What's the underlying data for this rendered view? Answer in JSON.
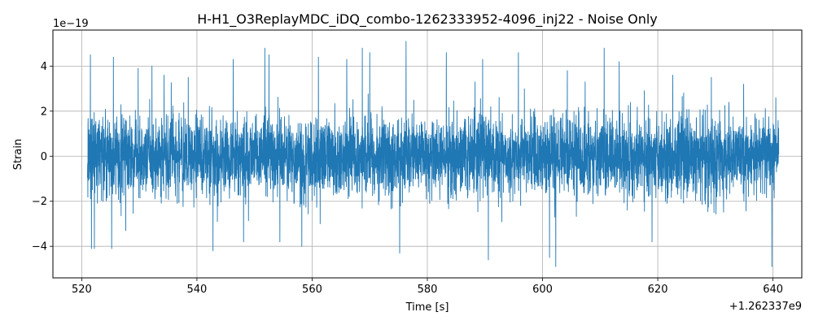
{
  "chart_data": {
    "type": "line",
    "title": "H-H1_O3ReplayMDC_iDQ_combo-1262333952-4096_inj22 - Noise Only",
    "xlabel": "Time [s]",
    "ylabel": "Strain",
    "x_offset_label": "+1.262337e9",
    "y_scale_label": "1e−19",
    "xlim": [
      515,
      645
    ],
    "ylim": [
      -5.4,
      5.6
    ],
    "grid": true,
    "x_ticks": [
      520,
      540,
      560,
      580,
      600,
      620,
      640
    ],
    "x_tick_labels": [
      "520",
      "540",
      "560",
      "580",
      "600",
      "620",
      "640"
    ],
    "y_ticks": [
      -4,
      -2,
      0,
      2,
      4
    ],
    "y_tick_labels": [
      "−4",
      "−2",
      "0",
      "2",
      "4"
    ],
    "series": [
      {
        "color": "#1f77b4",
        "x_range": [
          521,
          641
        ],
        "typical_amplitude": 1.6,
        "peaks": [
          {
            "x": 521.5,
            "y": 4.5
          },
          {
            "x": 521.7,
            "y": -4.1
          },
          {
            "x": 522.2,
            "y": -4.1
          },
          {
            "x": 525.5,
            "y": 4.4
          },
          {
            "x": 525.2,
            "y": -4.1
          },
          {
            "x": 529.8,
            "y": 3.9
          },
          {
            "x": 532.2,
            "y": 4.0
          },
          {
            "x": 534.3,
            "y": 3.6
          },
          {
            "x": 538.5,
            "y": 3.5
          },
          {
            "x": 542.8,
            "y": -4.2
          },
          {
            "x": 546.3,
            "y": 4.3
          },
          {
            "x": 548.1,
            "y": -3.8
          },
          {
            "x": 551.8,
            "y": 4.8
          },
          {
            "x": 552.5,
            "y": 4.5
          },
          {
            "x": 554.4,
            "y": -3.8
          },
          {
            "x": 558.2,
            "y": -4.0
          },
          {
            "x": 561.1,
            "y": 4.4
          },
          {
            "x": 566.0,
            "y": 4.3
          },
          {
            "x": 568.7,
            "y": 4.8
          },
          {
            "x": 570.0,
            "y": 4.6
          },
          {
            "x": 576.3,
            "y": 5.1
          },
          {
            "x": 575.2,
            "y": -4.3
          },
          {
            "x": 583.3,
            "y": 4.6
          },
          {
            "x": 589.6,
            "y": 4.3
          },
          {
            "x": 590.6,
            "y": -4.6
          },
          {
            "x": 595.8,
            "y": 4.6
          },
          {
            "x": 601.2,
            "y": -4.5
          },
          {
            "x": 602.3,
            "y": -4.9
          },
          {
            "x": 604.3,
            "y": 3.8
          },
          {
            "x": 610.7,
            "y": 4.8
          },
          {
            "x": 613.3,
            "y": 4.2
          },
          {
            "x": 619.0,
            "y": -3.8
          },
          {
            "x": 622.6,
            "y": 3.6
          },
          {
            "x": 629.3,
            "y": 3.5
          },
          {
            "x": 634.9,
            "y": 3.2
          },
          {
            "x": 639.8,
            "y": -4.9
          },
          {
            "x": 640.5,
            "y": 2.6
          }
        ]
      }
    ]
  }
}
